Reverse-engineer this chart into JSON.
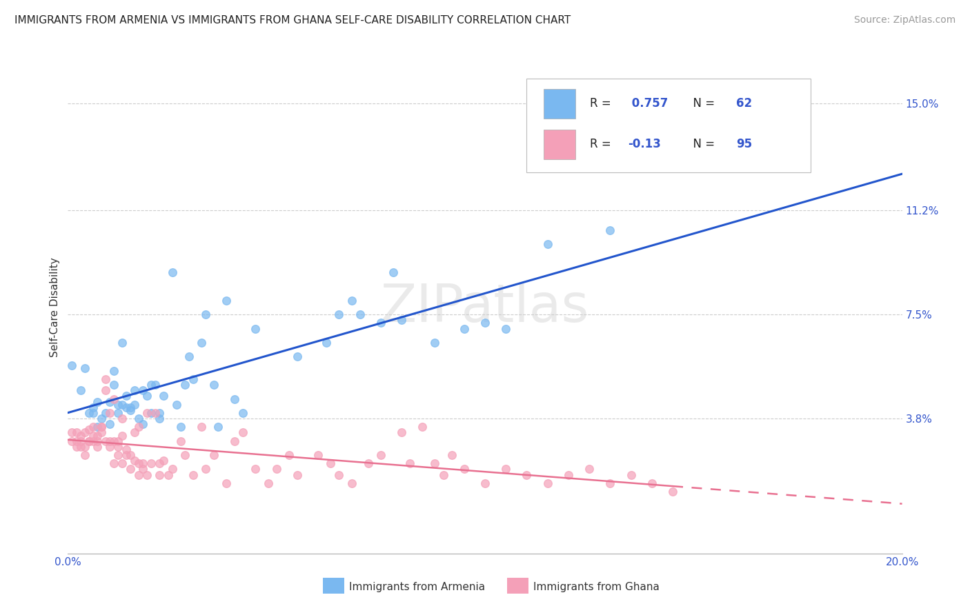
{
  "title": "IMMIGRANTS FROM ARMENIA VS IMMIGRANTS FROM GHANA SELF-CARE DISABILITY CORRELATION CHART",
  "source": "Source: ZipAtlas.com",
  "ylabel": "Self-Care Disability",
  "ytick_labels": [
    "15.0%",
    "11.2%",
    "7.5%",
    "3.8%"
  ],
  "ytick_values": [
    0.15,
    0.112,
    0.075,
    0.038
  ],
  "xlim": [
    0.0,
    0.2
  ],
  "ylim": [
    -0.01,
    0.165
  ],
  "armenia_color": "#7ab8f0",
  "ghana_color": "#f4a0b8",
  "armenia_R": 0.757,
  "armenia_N": 62,
  "ghana_R": -0.13,
  "ghana_N": 95,
  "watermark": "ZIPatlas",
  "background_color": "#ffffff",
  "grid_color": "#cccccc",
  "legend_label_armenia": "Immigrants from Armenia",
  "legend_label_ghana": "Immigrants from Ghana",
  "armenia_line_color": "#2255cc",
  "ghana_line_color": "#e87090",
  "armenia_scatter": [
    [
      0.001,
      0.057
    ],
    [
      0.003,
      0.048
    ],
    [
      0.004,
      0.056
    ],
    [
      0.005,
      0.04
    ],
    [
      0.006,
      0.04
    ],
    [
      0.006,
      0.042
    ],
    [
      0.007,
      0.035
    ],
    [
      0.007,
      0.044
    ],
    [
      0.008,
      0.038
    ],
    [
      0.009,
      0.04
    ],
    [
      0.01,
      0.036
    ],
    [
      0.01,
      0.044
    ],
    [
      0.011,
      0.05
    ],
    [
      0.011,
      0.055
    ],
    [
      0.012,
      0.04
    ],
    [
      0.012,
      0.043
    ],
    [
      0.013,
      0.065
    ],
    [
      0.013,
      0.043
    ],
    [
      0.014,
      0.046
    ],
    [
      0.014,
      0.042
    ],
    [
      0.015,
      0.042
    ],
    [
      0.015,
      0.041
    ],
    [
      0.016,
      0.048
    ],
    [
      0.016,
      0.043
    ],
    [
      0.017,
      0.038
    ],
    [
      0.018,
      0.036
    ],
    [
      0.018,
      0.048
    ],
    [
      0.019,
      0.046
    ],
    [
      0.02,
      0.05
    ],
    [
      0.02,
      0.04
    ],
    [
      0.021,
      0.05
    ],
    [
      0.022,
      0.04
    ],
    [
      0.022,
      0.038
    ],
    [
      0.023,
      0.046
    ],
    [
      0.025,
      0.09
    ],
    [
      0.026,
      0.043
    ],
    [
      0.027,
      0.035
    ],
    [
      0.028,
      0.05
    ],
    [
      0.029,
      0.06
    ],
    [
      0.03,
      0.052
    ],
    [
      0.032,
      0.065
    ],
    [
      0.033,
      0.075
    ],
    [
      0.035,
      0.05
    ],
    [
      0.036,
      0.035
    ],
    [
      0.038,
      0.08
    ],
    [
      0.04,
      0.045
    ],
    [
      0.042,
      0.04
    ],
    [
      0.045,
      0.07
    ],
    [
      0.055,
      0.06
    ],
    [
      0.062,
      0.065
    ],
    [
      0.065,
      0.075
    ],
    [
      0.068,
      0.08
    ],
    [
      0.07,
      0.075
    ],
    [
      0.075,
      0.072
    ],
    [
      0.078,
      0.09
    ],
    [
      0.08,
      0.073
    ],
    [
      0.088,
      0.065
    ],
    [
      0.095,
      0.07
    ],
    [
      0.1,
      0.072
    ],
    [
      0.105,
      0.07
    ],
    [
      0.115,
      0.1
    ],
    [
      0.13,
      0.105
    ]
  ],
  "ghana_scatter": [
    [
      0.001,
      0.033
    ],
    [
      0.001,
      0.03
    ],
    [
      0.002,
      0.033
    ],
    [
      0.002,
      0.028
    ],
    [
      0.002,
      0.03
    ],
    [
      0.003,
      0.032
    ],
    [
      0.003,
      0.028
    ],
    [
      0.003,
      0.03
    ],
    [
      0.004,
      0.033
    ],
    [
      0.004,
      0.025
    ],
    [
      0.004,
      0.028
    ],
    [
      0.005,
      0.03
    ],
    [
      0.005,
      0.03
    ],
    [
      0.005,
      0.034
    ],
    [
      0.006,
      0.032
    ],
    [
      0.006,
      0.035
    ],
    [
      0.006,
      0.03
    ],
    [
      0.007,
      0.032
    ],
    [
      0.007,
      0.028
    ],
    [
      0.007,
      0.03
    ],
    [
      0.008,
      0.033
    ],
    [
      0.008,
      0.035
    ],
    [
      0.008,
      0.035
    ],
    [
      0.009,
      0.048
    ],
    [
      0.009,
      0.03
    ],
    [
      0.009,
      0.052
    ],
    [
      0.01,
      0.028
    ],
    [
      0.01,
      0.03
    ],
    [
      0.01,
      0.04
    ],
    [
      0.011,
      0.045
    ],
    [
      0.011,
      0.03
    ],
    [
      0.011,
      0.022
    ],
    [
      0.012,
      0.03
    ],
    [
      0.012,
      0.025
    ],
    [
      0.012,
      0.028
    ],
    [
      0.013,
      0.038
    ],
    [
      0.013,
      0.022
    ],
    [
      0.013,
      0.032
    ],
    [
      0.014,
      0.025
    ],
    [
      0.014,
      0.027
    ],
    [
      0.015,
      0.025
    ],
    [
      0.015,
      0.02
    ],
    [
      0.016,
      0.023
    ],
    [
      0.016,
      0.033
    ],
    [
      0.017,
      0.022
    ],
    [
      0.017,
      0.018
    ],
    [
      0.017,
      0.035
    ],
    [
      0.018,
      0.02
    ],
    [
      0.018,
      0.022
    ],
    [
      0.019,
      0.018
    ],
    [
      0.019,
      0.04
    ],
    [
      0.02,
      0.022
    ],
    [
      0.021,
      0.04
    ],
    [
      0.022,
      0.018
    ],
    [
      0.022,
      0.022
    ],
    [
      0.023,
      0.023
    ],
    [
      0.024,
      0.018
    ],
    [
      0.025,
      0.02
    ],
    [
      0.027,
      0.03
    ],
    [
      0.028,
      0.025
    ],
    [
      0.03,
      0.018
    ],
    [
      0.032,
      0.035
    ],
    [
      0.033,
      0.02
    ],
    [
      0.035,
      0.025
    ],
    [
      0.038,
      0.015
    ],
    [
      0.04,
      0.03
    ],
    [
      0.042,
      0.033
    ],
    [
      0.045,
      0.02
    ],
    [
      0.048,
      0.015
    ],
    [
      0.05,
      0.02
    ],
    [
      0.053,
      0.025
    ],
    [
      0.055,
      0.018
    ],
    [
      0.06,
      0.025
    ],
    [
      0.063,
      0.022
    ],
    [
      0.065,
      0.018
    ],
    [
      0.068,
      0.015
    ],
    [
      0.072,
      0.022
    ],
    [
      0.075,
      0.025
    ],
    [
      0.08,
      0.033
    ],
    [
      0.082,
      0.022
    ],
    [
      0.085,
      0.035
    ],
    [
      0.088,
      0.022
    ],
    [
      0.09,
      0.018
    ],
    [
      0.092,
      0.025
    ],
    [
      0.095,
      0.02
    ],
    [
      0.1,
      0.015
    ],
    [
      0.105,
      0.02
    ],
    [
      0.11,
      0.018
    ],
    [
      0.115,
      0.015
    ],
    [
      0.12,
      0.018
    ],
    [
      0.125,
      0.02
    ],
    [
      0.13,
      0.015
    ],
    [
      0.135,
      0.018
    ],
    [
      0.14,
      0.015
    ],
    [
      0.145,
      0.012
    ]
  ]
}
